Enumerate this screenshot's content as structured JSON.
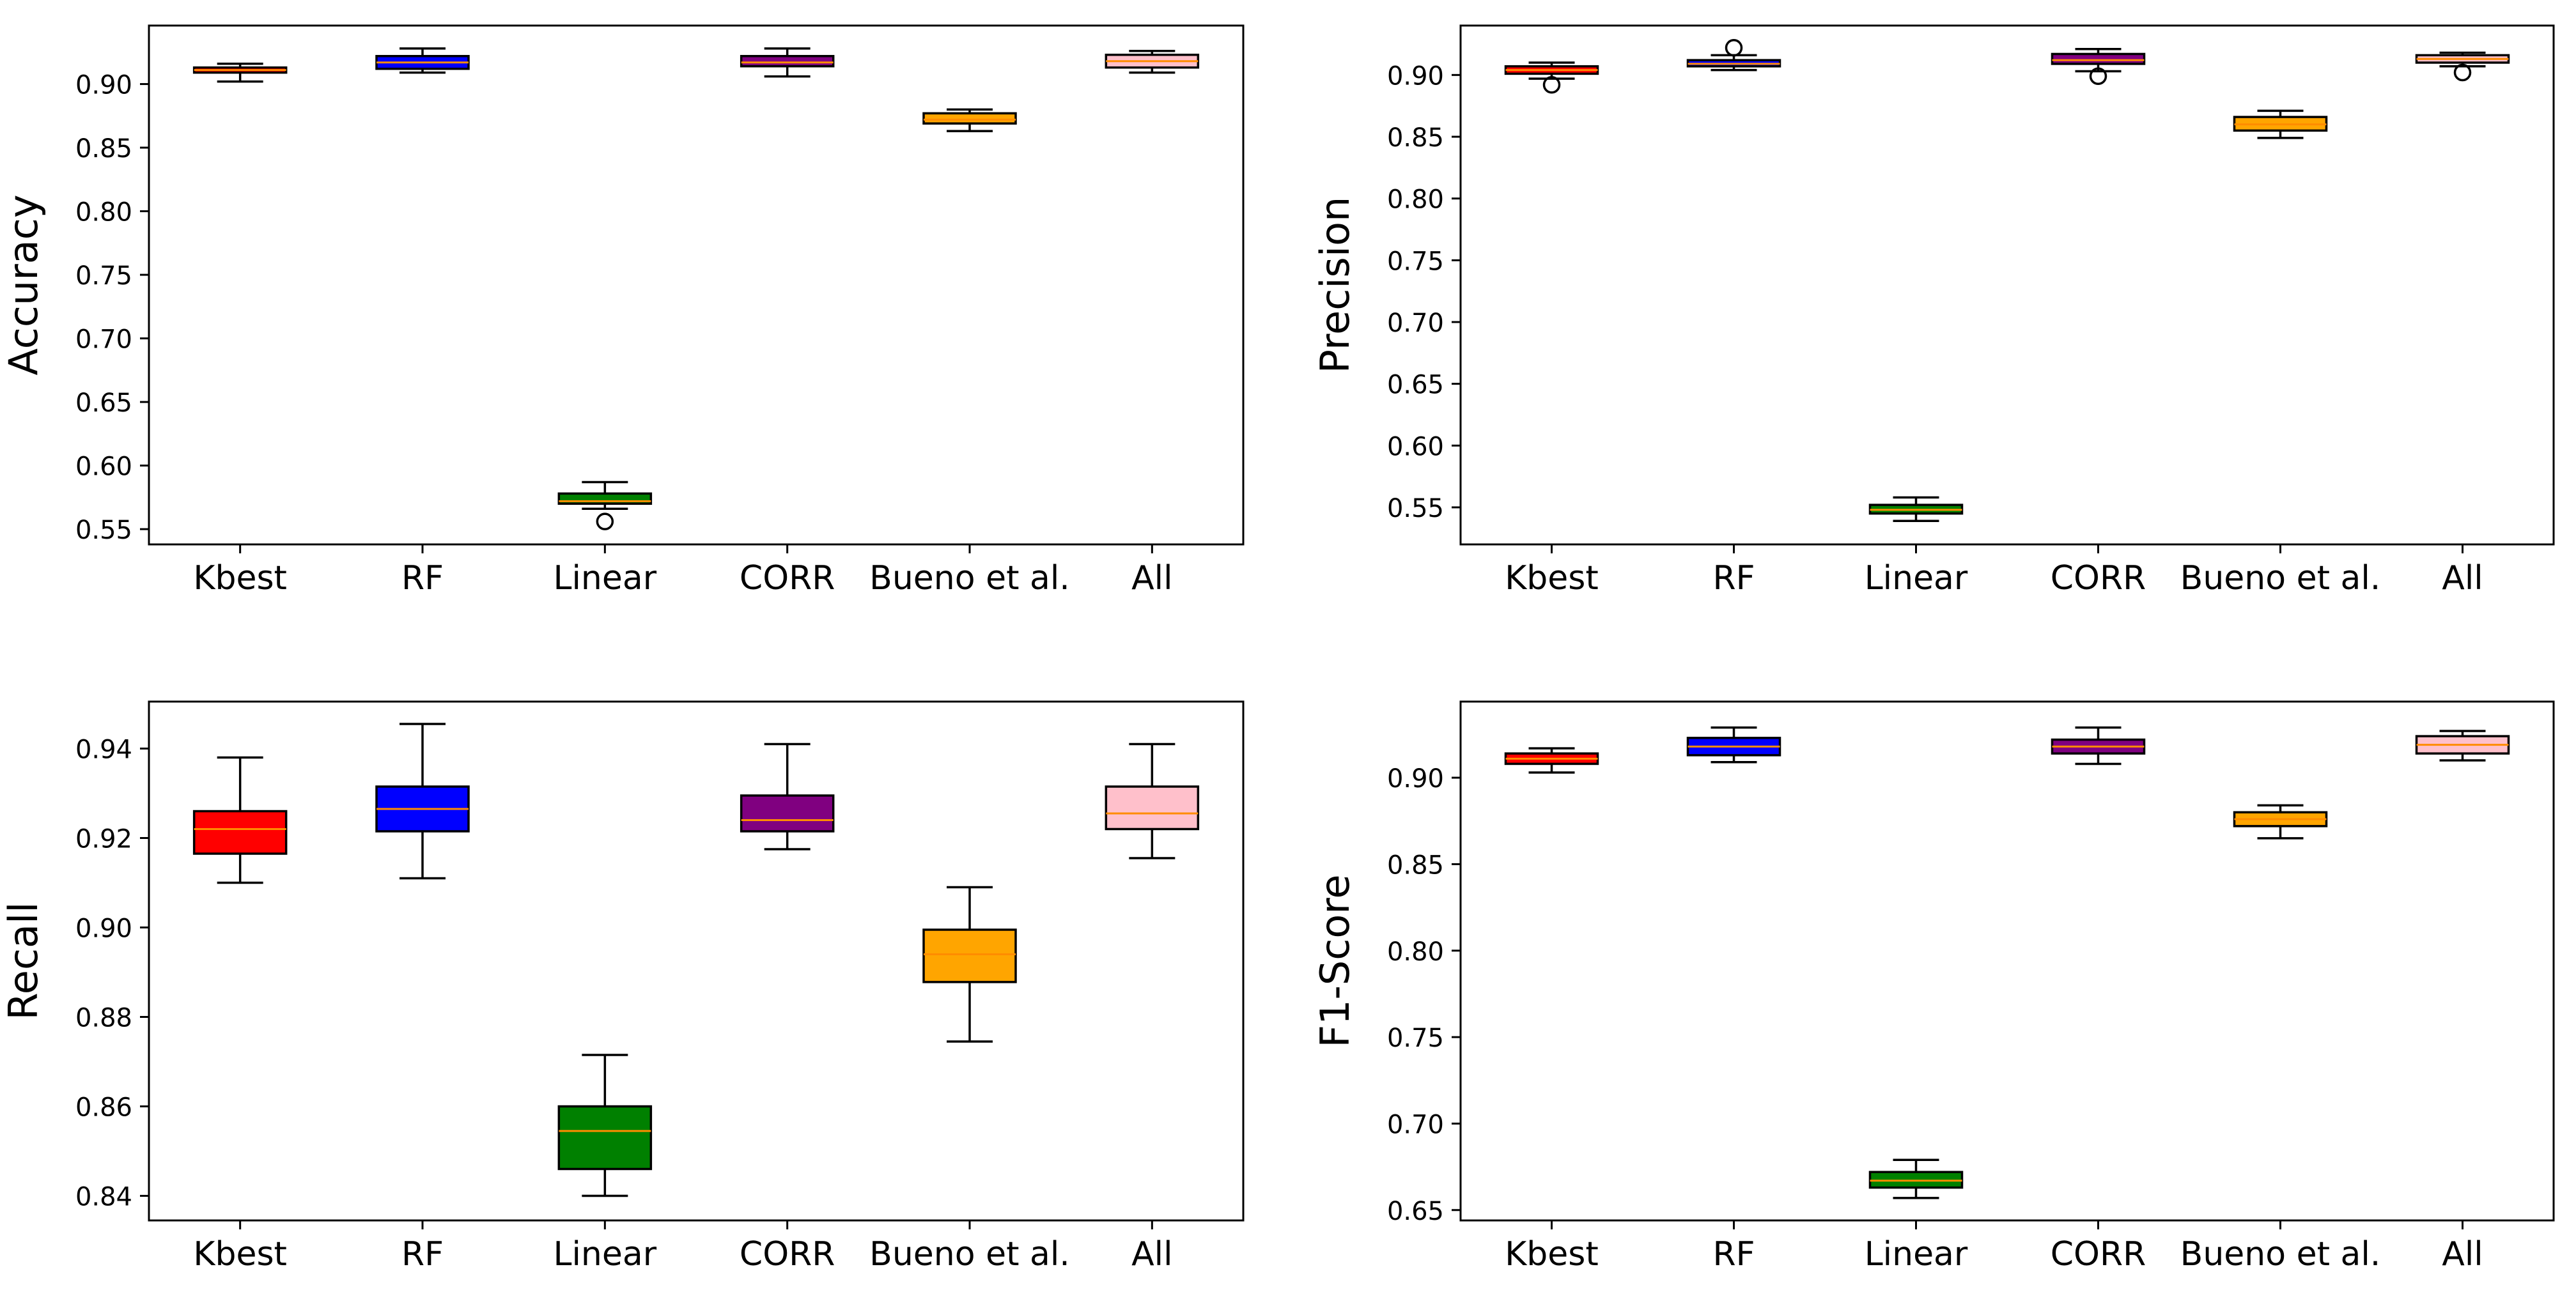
{
  "figure": {
    "description": "Box plots of four classification metrics across feature selection methods"
  },
  "chart_data": [
    {
      "type": "box",
      "ylabel": "Accuracy",
      "ylim": [
        0.538,
        0.946
      ],
      "yticks": [
        "0.55",
        "0.60",
        "0.65",
        "0.70",
        "0.75",
        "0.80",
        "0.85",
        "0.90"
      ],
      "categories": [
        "Kbest",
        "RF",
        "Linear",
        "CORR",
        "Bueno et al.",
        "All"
      ],
      "boxes": [
        {
          "label": "Kbest",
          "min": 0.902,
          "q1": 0.909,
          "median": 0.911,
          "q3": 0.913,
          "max": 0.916,
          "fliers": [],
          "color": "#ff0000"
        },
        {
          "label": "RF",
          "min": 0.909,
          "q1": 0.912,
          "median": 0.917,
          "q3": 0.922,
          "max": 0.928,
          "fliers": [],
          "color": "#0000ff"
        },
        {
          "label": "Linear",
          "min": 0.566,
          "q1": 0.57,
          "median": 0.572,
          "q3": 0.578,
          "max": 0.587,
          "fliers": [
            0.556
          ],
          "color": "#008000"
        },
        {
          "label": "CORR",
          "min": 0.906,
          "q1": 0.914,
          "median": 0.917,
          "q3": 0.922,
          "max": 0.928,
          "fliers": [],
          "color": "#800080"
        },
        {
          "label": "Bueno et al.",
          "min": 0.863,
          "q1": 0.869,
          "median": 0.872,
          "q3": 0.877,
          "max": 0.88,
          "fliers": [],
          "color": "#ffa500"
        },
        {
          "label": "All",
          "min": 0.909,
          "q1": 0.913,
          "median": 0.918,
          "q3": 0.923,
          "max": 0.926,
          "fliers": [],
          "color": "#ffc0cb"
        }
      ]
    },
    {
      "type": "box",
      "ylabel": "Precision",
      "ylim": [
        0.52,
        0.94
      ],
      "yticks": [
        "0.55",
        "0.60",
        "0.65",
        "0.70",
        "0.75",
        "0.80",
        "0.85",
        "0.90"
      ],
      "categories": [
        "Kbest",
        "RF",
        "Linear",
        "CORR",
        "Bueno et al.",
        "All"
      ],
      "boxes": [
        {
          "label": "Kbest",
          "min": 0.897,
          "q1": 0.901,
          "median": 0.904,
          "q3": 0.907,
          "max": 0.91,
          "fliers": [
            0.892
          ],
          "color": "#ff0000"
        },
        {
          "label": "RF",
          "min": 0.904,
          "q1": 0.907,
          "median": 0.909,
          "q3": 0.912,
          "max": 0.916,
          "fliers": [
            0.922
          ],
          "color": "#0000ff"
        },
        {
          "label": "Linear",
          "min": 0.539,
          "q1": 0.545,
          "median": 0.548,
          "q3": 0.552,
          "max": 0.558,
          "fliers": [],
          "color": "#008000"
        },
        {
          "label": "CORR",
          "min": 0.903,
          "q1": 0.909,
          "median": 0.912,
          "q3": 0.917,
          "max": 0.921,
          "fliers": [
            0.899
          ],
          "color": "#800080"
        },
        {
          "label": "Bueno et al.",
          "min": 0.849,
          "q1": 0.855,
          "median": 0.86,
          "q3": 0.866,
          "max": 0.871,
          "fliers": [],
          "color": "#ffa500"
        },
        {
          "label": "All",
          "min": 0.907,
          "q1": 0.91,
          "median": 0.913,
          "q3": 0.916,
          "max": 0.918,
          "fliers": [
            0.902
          ],
          "color": "#ffc0cb"
        }
      ]
    },
    {
      "type": "box",
      "ylabel": "Recall",
      "ylim": [
        0.8345,
        0.9505
      ],
      "yticks": [
        "0.84",
        "0.86",
        "0.88",
        "0.90",
        "0.92",
        "0.94"
      ],
      "categories": [
        "Kbest",
        "RF",
        "Linear",
        "CORR",
        "Bueno et al.",
        "All"
      ],
      "boxes": [
        {
          "label": "Kbest",
          "min": 0.91,
          "q1": 0.9165,
          "median": 0.922,
          "q3": 0.926,
          "max": 0.938,
          "fliers": [],
          "color": "#ff0000"
        },
        {
          "label": "RF",
          "min": 0.911,
          "q1": 0.9215,
          "median": 0.9265,
          "q3": 0.9315,
          "max": 0.9455,
          "fliers": [],
          "color": "#0000ff"
        },
        {
          "label": "Linear",
          "min": 0.84,
          "q1": 0.846,
          "median": 0.8545,
          "q3": 0.86,
          "max": 0.8715,
          "fliers": [],
          "color": "#008000"
        },
        {
          "label": "CORR",
          "min": 0.9175,
          "q1": 0.9215,
          "median": 0.924,
          "q3": 0.9295,
          "max": 0.941,
          "fliers": [],
          "color": "#800080"
        },
        {
          "label": "Bueno et al.",
          "min": 0.8745,
          "q1": 0.8878,
          "median": 0.894,
          "q3": 0.8995,
          "max": 0.909,
          "fliers": [],
          "color": "#ffa500"
        },
        {
          "label": "All",
          "min": 0.9155,
          "q1": 0.922,
          "median": 0.9255,
          "q3": 0.9315,
          "max": 0.941,
          "fliers": [],
          "color": "#ffc0cb"
        }
      ]
    },
    {
      "type": "box",
      "ylabel": "F1-Score",
      "ylim": [
        0.644,
        0.944
      ],
      "yticks": [
        "0.65",
        "0.70",
        "0.75",
        "0.80",
        "0.85",
        "0.90"
      ],
      "categories": [
        "Kbest",
        "RF",
        "Linear",
        "CORR",
        "Bueno et al.",
        "All"
      ],
      "boxes": [
        {
          "label": "Kbest",
          "min": 0.903,
          "q1": 0.908,
          "median": 0.911,
          "q3": 0.914,
          "max": 0.917,
          "fliers": [],
          "color": "#ff0000"
        },
        {
          "label": "RF",
          "min": 0.909,
          "q1": 0.913,
          "median": 0.918,
          "q3": 0.923,
          "max": 0.929,
          "fliers": [],
          "color": "#0000ff"
        },
        {
          "label": "Linear",
          "min": 0.657,
          "q1": 0.663,
          "median": 0.667,
          "q3": 0.672,
          "max": 0.679,
          "fliers": [],
          "color": "#008000"
        },
        {
          "label": "CORR",
          "min": 0.908,
          "q1": 0.914,
          "median": 0.918,
          "q3": 0.922,
          "max": 0.929,
          "fliers": [],
          "color": "#800080"
        },
        {
          "label": "Bueno et al.",
          "min": 0.865,
          "q1": 0.872,
          "median": 0.876,
          "q3": 0.88,
          "max": 0.884,
          "fliers": [],
          "color": "#ffa500"
        },
        {
          "label": "All",
          "min": 0.91,
          "q1": 0.914,
          "median": 0.919,
          "q3": 0.924,
          "max": 0.927,
          "fliers": [],
          "color": "#ffc0cb"
        }
      ]
    }
  ]
}
